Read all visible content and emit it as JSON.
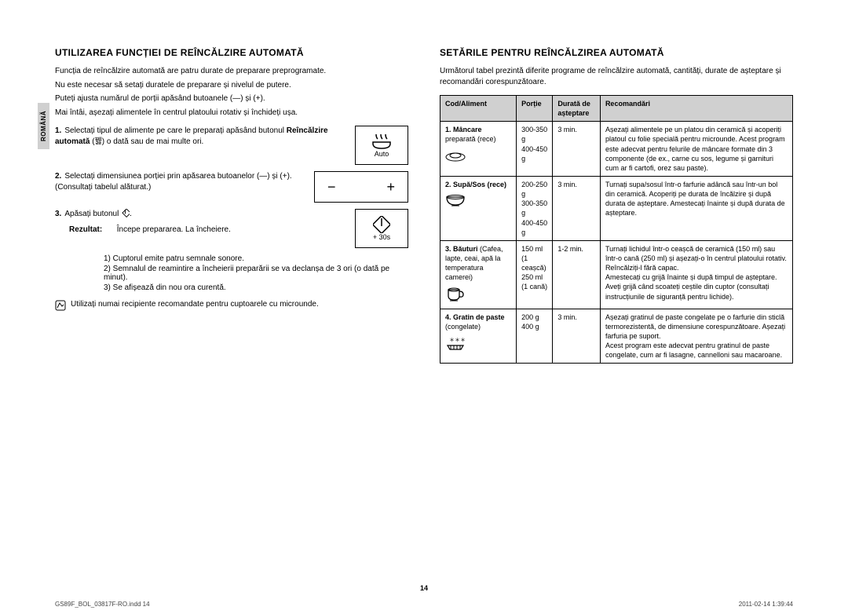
{
  "sideTab": "ROMÂNĂ",
  "left": {
    "heading": "UTILIZAREA FUNCȚIEI DE REÎNCĂLZIRE AUTOMATĂ",
    "p1": "Funcția de reîncălzire automată are patru durate de preparare preprogramate.",
    "p2": "Nu este necesar să setați duratele de preparare și nivelul de putere.",
    "p3a": "Puteți ajusta numărul de porții apăsând butoanele (",
    "p3b": ") și (",
    "p3c": ").",
    "p4": "Mai întâi, așezați alimentele în centrul platoului rotativ și închideți ușa.",
    "step1_n": "1.",
    "step1_a": "Selectați tipul de alimente pe care le preparați apăsând butonul ",
    "step1_b": "Reîncălzire automată",
    "step1_c": " (꿿) o dată sau de mai multe ori.",
    "autoLabel": "Auto",
    "step2_n": "2.",
    "step2_a": "Selectați dimensiunea porției prin apăsarea butoanelor (",
    "step2_b": ") și (",
    "step2_c": "). (Consultați tabelul alăturat.)",
    "step3_n": "3.",
    "step3_a": "Apăsați butonul ",
    "step3_b": ".",
    "resultLabel": "Rezultat:",
    "resultText": "Începe prepararea. La încheiere.",
    "plus30": "+ 30s",
    "r1": "1)  Cuptorul emite patru semnale sonore.",
    "r2": "2)  Semnalul de reamintire a încheierii preparării se va declanșa de 3 ori (o dată pe minut).",
    "r3": "3)  Se afișează din nou ora curentă.",
    "note": "Utilizați numai recipiente recomandate pentru cuptoarele cu microunde."
  },
  "right": {
    "heading": "SETĂRILE PENTRU REÎNCĂLZIREA AUTOMATĂ",
    "intro": "Următorul tabel prezintă diferite programe de reîncălzire automată, cantități, durate de așteptare și recomandări corespunzătoare.",
    "headers": [
      "Cod/Aliment",
      "Porție",
      "Durată de așteptare",
      "Recomandări"
    ],
    "rows": [
      {
        "code_t": "1. Mâncare",
        "code_s": "preparată (rece)",
        "icon": "plate",
        "portion": "300-350 g\n400-450 g",
        "wait": "3 min.",
        "rec": "Așezați alimentele pe un platou din ceramică și acoperiți platoul cu folie specială pentru microunde. Acest program este adecvat pentru felurile de mâncare formate din 3 componente (de ex., carne cu sos, legume și garnituri cum ar fi cartofi, orez sau paste)."
      },
      {
        "code_t": "2. Supă/Sos (rece)",
        "code_s": "",
        "icon": "bowl",
        "portion": "200-250 g\n300-350 g\n400-450 g",
        "wait": "3 min.",
        "rec": "Turnați supa/sosul într-o farfurie adâncă sau într-un bol din ceramică. Acoperiți pe durata de încălzire și după durata de așteptare. Amestecați înainte și după durata de așteptare."
      },
      {
        "code_t": "3. Băuturi",
        "code_s": "(Cafea, lapte, ceai, apă la temperatura camerei)",
        "icon": "cup",
        "portion": "150 ml\n(1 ceașcă)\n250 ml\n(1 cană)",
        "wait": "1-2 min.",
        "rec": "Turnați lichidul într-o ceașcă de ceramică (150 ml) sau într-o cană (250 ml) și așezați-o în centrul platoului rotativ.\nReîncălziți-l fără capac.\nAmestecați cu grijă înainte și după timpul de așteptare.\nAveți grijă când scoateți ceștile din cuptor (consultați instrucțiunile de siguranță pentru lichide)."
      },
      {
        "code_t": "4. Gratin de paste",
        "code_s": "(congelate)",
        "icon": "frozen",
        "portion": "200 g\n400 g",
        "wait": "3 min.",
        "rec": "Așezați gratinul de paste congelate pe o farfurie din sticlă termorezistentă, de dimensiune corespunzătoare. Așezați farfuria pe suport.\nAcest program este adecvat pentru gratinul de paste congelate, cum ar fi lasagne, cannelloni sau macaroane."
      }
    ]
  },
  "pageNum": "14",
  "footerLeft": "GS89F_BOL_03817F-RO.indd   14",
  "footerRight": "2011-02-14     1:39:44"
}
